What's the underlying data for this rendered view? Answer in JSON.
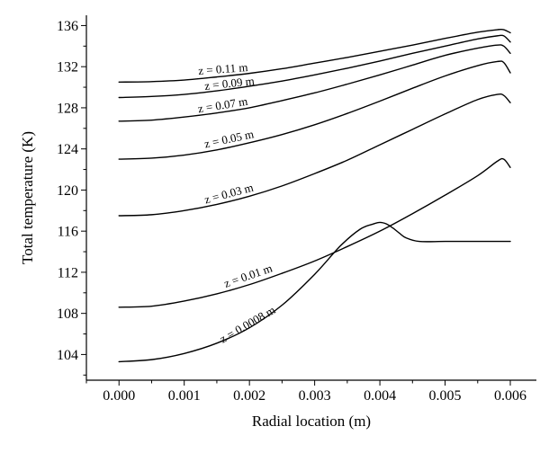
{
  "chart_data": {
    "type": "line",
    "xlabel": "Radial location (m)",
    "ylabel": "Total temperature (K)",
    "xlim": [
      -0.0005,
      0.0064
    ],
    "ylim": [
      101.5,
      137
    ],
    "x_ticks": [
      "0.000",
      "0.001",
      "0.002",
      "0.003",
      "0.004",
      "0.005",
      "0.006"
    ],
    "y_ticks": [
      "104",
      "108",
      "112",
      "116",
      "120",
      "124",
      "128",
      "132",
      "136"
    ],
    "series": [
      {
        "name": "z = 0.11 m",
        "x": [
          0,
          0.0005,
          0.001,
          0.0015,
          0.002,
          0.0025,
          0.003,
          0.0035,
          0.004,
          0.0045,
          0.005,
          0.0055,
          0.0058,
          0.0059,
          0.006
        ],
        "y": [
          130.5,
          130.55,
          130.7,
          131.0,
          131.35,
          131.8,
          132.35,
          132.9,
          133.5,
          134.1,
          134.75,
          135.35,
          135.6,
          135.6,
          135.3
        ]
      },
      {
        "name": "z = 0.09 m",
        "x": [
          0,
          0.0005,
          0.001,
          0.0015,
          0.002,
          0.0025,
          0.003,
          0.0035,
          0.004,
          0.0045,
          0.005,
          0.0055,
          0.0058,
          0.0059,
          0.006
        ],
        "y": [
          129.0,
          129.1,
          129.3,
          129.65,
          130.1,
          130.6,
          131.2,
          131.85,
          132.55,
          133.3,
          134.0,
          134.7,
          135.0,
          135.0,
          134.4
        ]
      },
      {
        "name": "z = 0.07 m",
        "x": [
          0,
          0.0005,
          0.001,
          0.0015,
          0.002,
          0.0025,
          0.003,
          0.0035,
          0.004,
          0.0045,
          0.005,
          0.0055,
          0.0058,
          0.0059,
          0.006
        ],
        "y": [
          126.7,
          126.8,
          127.1,
          127.5,
          128.0,
          128.7,
          129.45,
          130.3,
          131.2,
          132.15,
          133.1,
          133.8,
          134.1,
          134.0,
          133.3
        ]
      },
      {
        "name": "z = 0.05 m",
        "x": [
          0,
          0.0005,
          0.001,
          0.0015,
          0.002,
          0.0025,
          0.003,
          0.0035,
          0.004,
          0.0045,
          0.005,
          0.0055,
          0.0058,
          0.0059,
          0.006
        ],
        "y": [
          123.0,
          123.1,
          123.4,
          123.9,
          124.6,
          125.4,
          126.35,
          127.45,
          128.65,
          129.9,
          131.1,
          132.1,
          132.5,
          132.4,
          131.4
        ]
      },
      {
        "name": "z = 0.03 m",
        "x": [
          0,
          0.0005,
          0.001,
          0.0015,
          0.002,
          0.0025,
          0.003,
          0.0035,
          0.004,
          0.0045,
          0.005,
          0.0055,
          0.0058,
          0.0059,
          0.006
        ],
        "y": [
          117.5,
          117.6,
          118.0,
          118.6,
          119.4,
          120.4,
          121.6,
          122.9,
          124.4,
          125.9,
          127.4,
          128.8,
          129.3,
          129.2,
          128.5
        ]
      },
      {
        "name": "z = 0.01 m",
        "x": [
          0,
          0.0005,
          0.001,
          0.0015,
          0.002,
          0.0025,
          0.003,
          0.0035,
          0.004,
          0.0045,
          0.005,
          0.0055,
          0.0058,
          0.0059,
          0.006
        ],
        "y": [
          108.6,
          108.7,
          109.2,
          109.9,
          110.8,
          111.9,
          113.1,
          114.5,
          116.0,
          117.7,
          119.5,
          121.4,
          122.8,
          123.0,
          122.2
        ]
      },
      {
        "name": "z = 0.0008 m",
        "x": [
          0,
          0.0005,
          0.001,
          0.0015,
          0.002,
          0.0025,
          0.003,
          0.0034,
          0.0037,
          0.0039,
          0.004,
          0.0041,
          0.0042,
          0.0043,
          0.0044,
          0.0046,
          0.005,
          0.0055,
          0.006
        ],
        "y": [
          103.3,
          103.5,
          104.1,
          105.1,
          106.6,
          108.8,
          111.8,
          114.6,
          116.2,
          116.7,
          116.85,
          116.7,
          116.3,
          115.8,
          115.35,
          115.0,
          115.0,
          115.0,
          115.0
        ]
      }
    ],
    "curve_labels": [
      {
        "text": "z = 0.11 m",
        "x": 0.0016,
        "y": 131.4,
        "angle": -4
      },
      {
        "text": "z = 0.09 m",
        "x": 0.0017,
        "y": 130.0,
        "angle": -6
      },
      {
        "text": "z = 0.07 m",
        "x": 0.0016,
        "y": 127.9,
        "angle": -9
      },
      {
        "text": "z = 0.05 m",
        "x": 0.0017,
        "y": 124.6,
        "angle": -12
      },
      {
        "text": "z = 0.03 m",
        "x": 0.0017,
        "y": 119.3,
        "angle": -15
      },
      {
        "text": "z = 0.01 m",
        "x": 0.002,
        "y": 111.3,
        "angle": -19
      },
      {
        "text": "z = 0.0008 m",
        "x": 0.002,
        "y": 106.6,
        "angle": -30
      }
    ],
    "grid": false,
    "legend": "none"
  }
}
